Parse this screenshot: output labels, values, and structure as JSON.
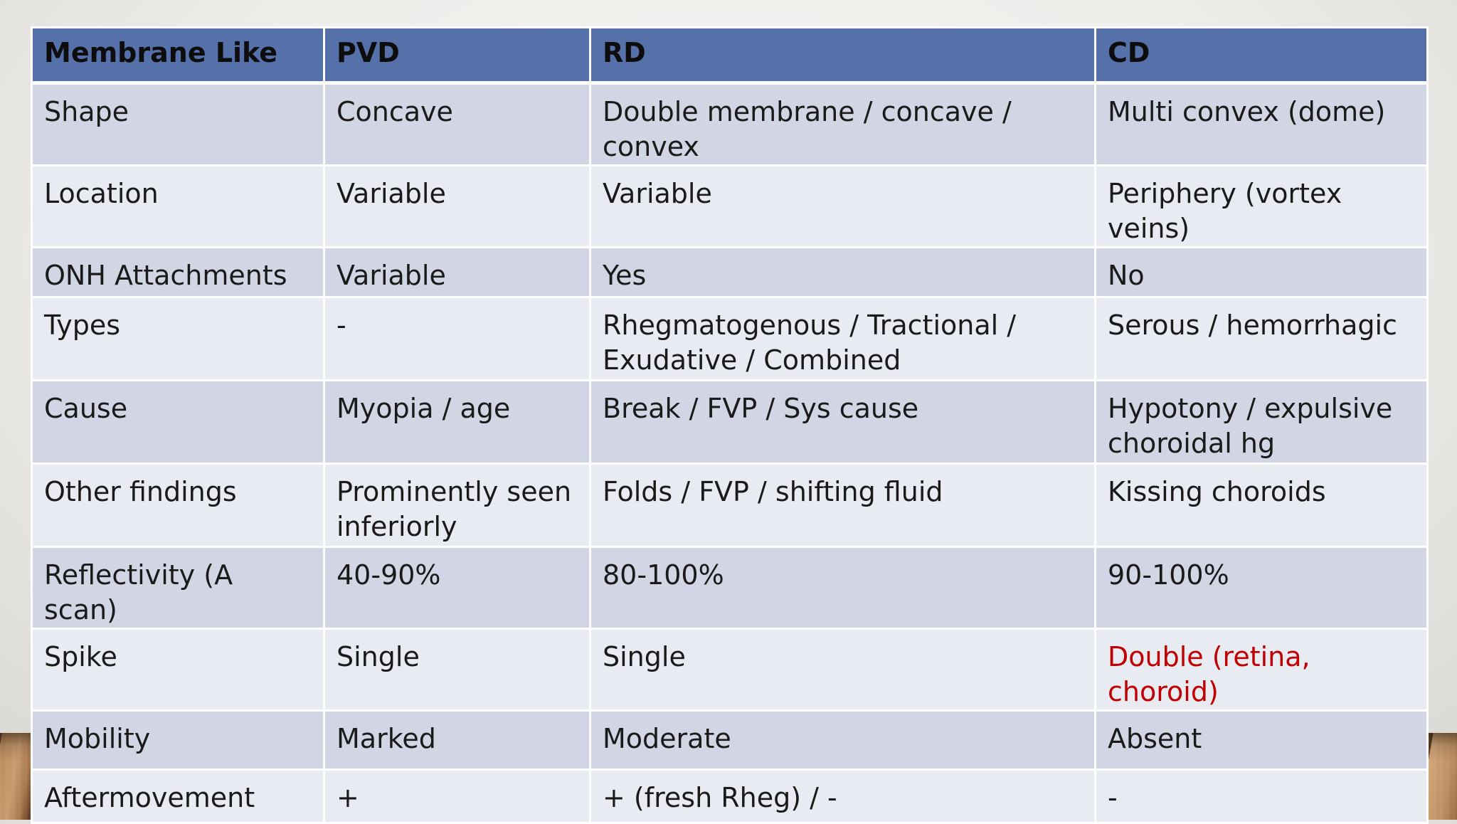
{
  "colors": {
    "header_bg": "#5670a9",
    "row_odd": "#d2d6e4",
    "row_even": "#e9ebf2",
    "highlight_text": "#c00000"
  },
  "table": {
    "headers": [
      "Membrane Like",
      "PVD",
      "RD",
      "CD"
    ],
    "rows": [
      {
        "label": "Shape",
        "pvd": "Concave",
        "rd": "Double membrane / concave / convex",
        "cd": "Multi convex (dome)"
      },
      {
        "label": "Location",
        "pvd": "Variable",
        "rd": "Variable",
        "cd": "Periphery (vortex veins)"
      },
      {
        "label": "ONH Attachments",
        "pvd": "Variable",
        "rd": "Yes",
        "cd": "No"
      },
      {
        "label": "Types",
        "pvd": "-",
        "rd": "Rhegmatogenous / Tractional / Exudative / Combined",
        "cd": "Serous / hemorrhagic"
      },
      {
        "label": "Cause",
        "pvd": "Myopia / age",
        "rd": "Break / FVP / Sys cause",
        "cd": "Hypotony / expulsive choroidal hg"
      },
      {
        "label": "Other findings",
        "pvd": "Prominently seen inferiorly",
        "rd": "Folds / FVP / shifting fluid",
        "cd": "Kissing choroids"
      },
      {
        "label": "Reflectivity (A scan)",
        "pvd": "40-90%",
        "rd": "80-100%",
        "cd": "90-100%"
      },
      {
        "label": "Spike",
        "pvd": "Single",
        "rd": "Single",
        "cd": "Double (retina, choroid)"
      },
      {
        "label": "Mobility",
        "pvd": "Marked",
        "rd": "Moderate",
        "cd": "Absent"
      },
      {
        "label": "Aftermovement",
        "pvd": "+",
        "rd": "+ (fresh Rheg) / -",
        "cd": "-"
      }
    ]
  }
}
